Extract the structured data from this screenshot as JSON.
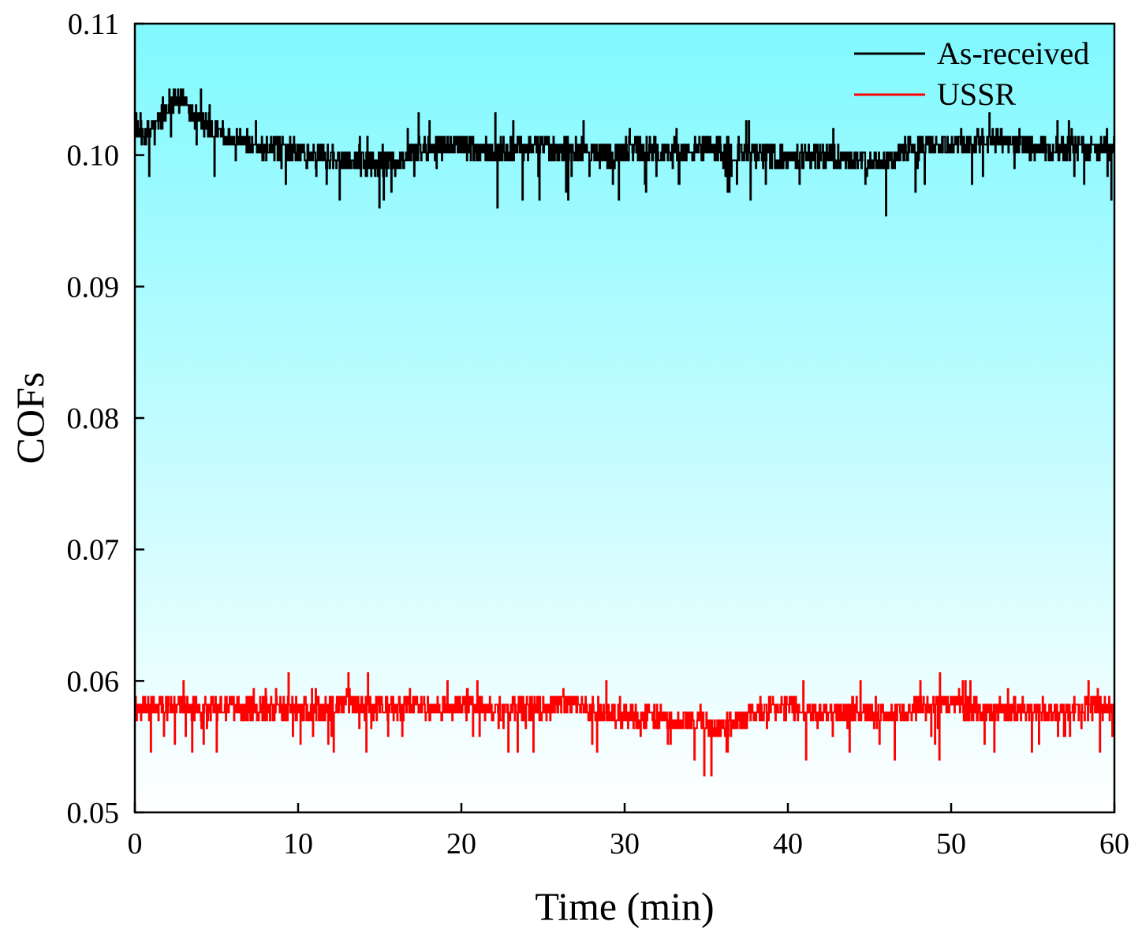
{
  "chart_data": {
    "type": "line",
    "title": "",
    "xlabel": "Time (min)",
    "ylabel": "COFs",
    "xlim": [
      0,
      60
    ],
    "ylim": [
      0.05,
      0.11
    ],
    "x_ticks": [
      0,
      10,
      20,
      30,
      40,
      50,
      60
    ],
    "x_tick_labels": [
      "0",
      "10",
      "20",
      "30",
      "40",
      "50",
      "60"
    ],
    "y_ticks": [
      0.05,
      0.06,
      0.07,
      0.08,
      0.09,
      0.1,
      0.11
    ],
    "y_tick_labels": [
      "0.05",
      "0.06",
      "0.07",
      "0.08",
      "0.09",
      "0.10",
      "0.11"
    ],
    "grid": false,
    "legend_position": "top-right",
    "background_gradient": {
      "top": "#7ff9ff",
      "bottom": "#ffffff"
    },
    "series": [
      {
        "name": "As-received",
        "color": "#000000",
        "x": [
          0,
          0.5,
          1,
          1.5,
          2,
          2.5,
          3,
          3.5,
          4,
          5,
          6,
          7,
          8,
          9,
          10,
          11,
          12,
          13,
          14,
          15,
          16,
          17,
          18,
          19,
          20,
          21,
          22,
          23,
          24,
          25,
          26,
          27,
          28,
          29,
          30,
          31,
          32,
          33,
          34,
          35,
          36,
          37,
          38,
          39,
          40,
          41,
          42,
          43,
          44,
          45,
          46,
          47,
          48,
          49,
          50,
          51,
          52,
          53,
          54,
          55,
          56,
          57,
          58,
          59,
          60
        ],
        "values": [
          0.1025,
          0.1015,
          0.102,
          0.1028,
          0.1035,
          0.1043,
          0.104,
          0.1032,
          0.1025,
          0.1018,
          0.1012,
          0.1008,
          0.1003,
          0.1005,
          0.1002,
          0.0998,
          0.1,
          0.0997,
          0.0995,
          0.0992,
          0.0995,
          0.1002,
          0.1006,
          0.1008,
          0.1007,
          0.1005,
          0.1003,
          0.1004,
          0.1006,
          0.1008,
          0.1005,
          0.1003,
          0.1002,
          0.1,
          0.1002,
          0.1004,
          0.1003,
          0.1001,
          0.1003,
          0.1004,
          0.1005,
          0.1002,
          0.1,
          0.0998,
          0.0996,
          0.0998,
          0.1,
          0.0999,
          0.0997,
          0.0995,
          0.0996,
          0.1002,
          0.1006,
          0.1008,
          0.1007,
          0.1008,
          0.101,
          0.1012,
          0.101,
          0.1005,
          0.1003,
          0.1004,
          0.1005,
          0.1004,
          0.1003
        ],
        "noise": 0.0009
      },
      {
        "name": "USSR",
        "color": "#ff0000",
        "x": [
          0,
          1,
          2,
          3,
          4,
          5,
          6,
          7,
          8,
          9,
          10,
          11,
          12,
          13,
          14,
          15,
          16,
          17,
          18,
          19,
          20,
          21,
          22,
          23,
          24,
          25,
          26,
          27,
          28,
          29,
          30,
          31,
          32,
          33,
          34,
          35,
          36,
          37,
          38,
          39,
          40,
          41,
          42,
          43,
          44,
          45,
          46,
          47,
          48,
          49,
          50,
          51,
          52,
          53,
          54,
          55,
          56,
          57,
          58,
          59,
          60
        ],
        "values": [
          0.0578,
          0.058,
          0.0581,
          0.0582,
          0.058,
          0.0581,
          0.058,
          0.0579,
          0.0578,
          0.0579,
          0.0578,
          0.0579,
          0.058,
          0.0584,
          0.0582,
          0.0579,
          0.058,
          0.0581,
          0.058,
          0.0579,
          0.0581,
          0.0582,
          0.058,
          0.0578,
          0.0577,
          0.0579,
          0.0583,
          0.0582,
          0.0578,
          0.0575,
          0.0574,
          0.0572,
          0.0572,
          0.0571,
          0.0572,
          0.0568,
          0.0566,
          0.057,
          0.0576,
          0.0578,
          0.058,
          0.0577,
          0.0575,
          0.0576,
          0.0577,
          0.0575,
          0.0574,
          0.0576,
          0.058,
          0.0582,
          0.0583,
          0.058,
          0.0578,
          0.0577,
          0.0578,
          0.0578,
          0.0577,
          0.0578,
          0.0579,
          0.058,
          0.0579
        ],
        "noise": 0.0009
      }
    ]
  }
}
